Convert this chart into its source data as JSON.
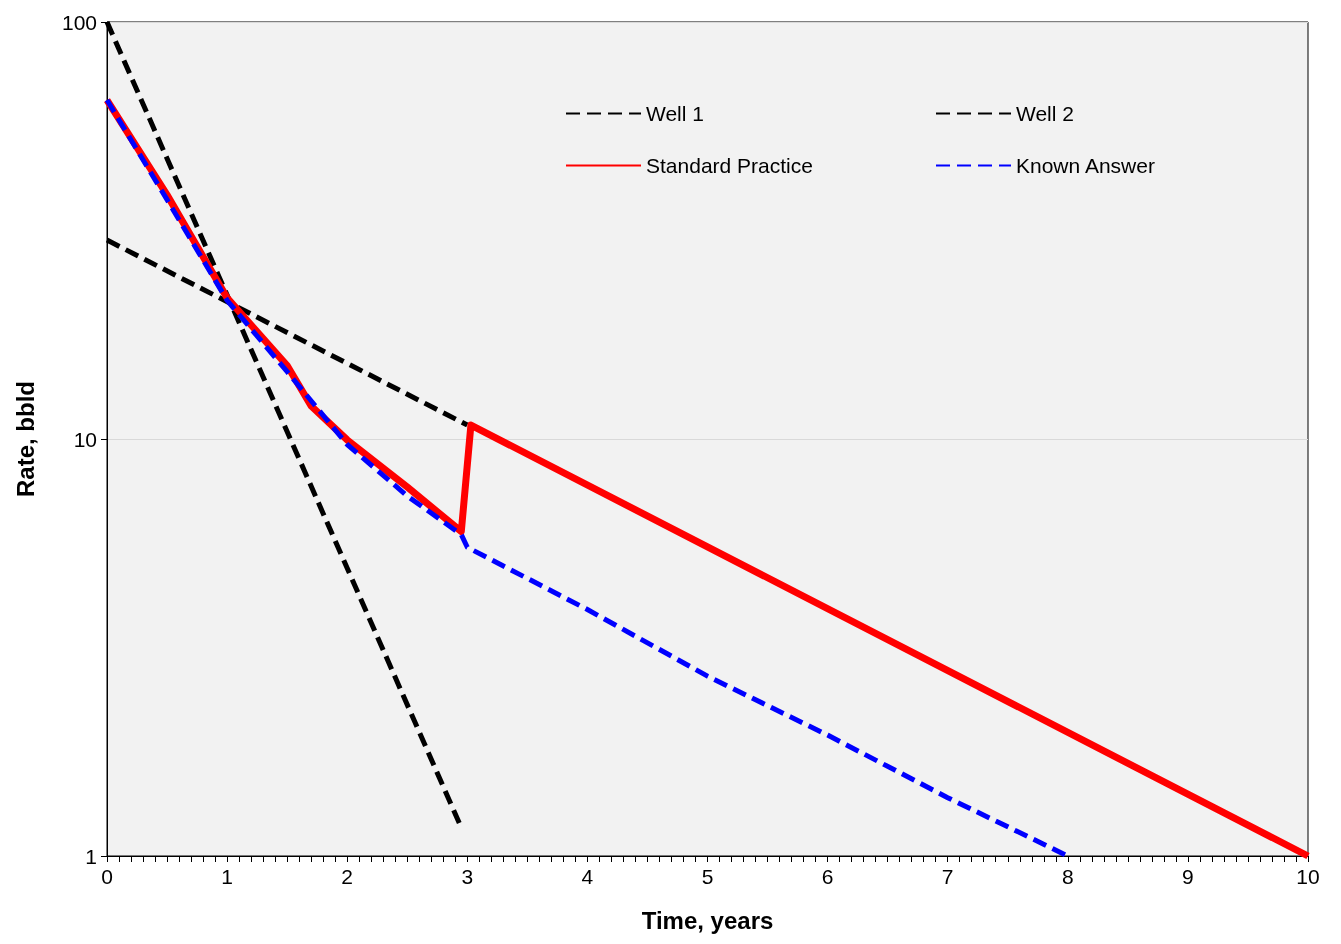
{
  "chart_data": {
    "type": "line",
    "xlabel": "Time, years",
    "ylabel": "Rate, bbld",
    "xlim": [
      0,
      10
    ],
    "xticks": [
      0,
      1,
      2,
      3,
      4,
      5,
      6,
      7,
      8,
      9,
      10
    ],
    "ylim": [
      1,
      100
    ],
    "yticks": [
      1,
      10,
      100
    ],
    "log": "y",
    "grid": "y",
    "legend": "top right",
    "marker": "none",
    "series": [
      {
        "name": "Well 1",
        "color": "#000000",
        "line_style": "dashed",
        "x": [
          0,
          2.95
        ],
        "values": [
          100,
          1.17
        ]
      },
      {
        "name": "Well 2",
        "color": "#000000",
        "line_style": "dashed",
        "x": [
          0,
          3.0
        ],
        "values": [
          30,
          10.8
        ]
      },
      {
        "name": "Standard Practice",
        "color": "#ff0000",
        "line_style": "solid",
        "x": [
          0,
          0.5,
          1,
          1.5,
          1.7,
          2,
          2.5,
          2.95,
          3.03,
          10
        ],
        "values": [
          65,
          38.5,
          21.8,
          15,
          12,
          9.95,
          7.67,
          6.0,
          10.8,
          1.0
        ]
      },
      {
        "name": "Known Answer",
        "color": "#0000ff",
        "line_style": "dashed",
        "x": [
          0,
          0.5,
          1,
          1.5,
          2,
          2.5,
          2.95,
          3,
          4,
          5,
          6,
          7,
          8
        ],
        "values": [
          65,
          37.5,
          21.5,
          14.5,
          9.7,
          7.3,
          5.9,
          5.5,
          3.9,
          2.7,
          1.95,
          1.38,
          1.0
        ]
      }
    ]
  }
}
